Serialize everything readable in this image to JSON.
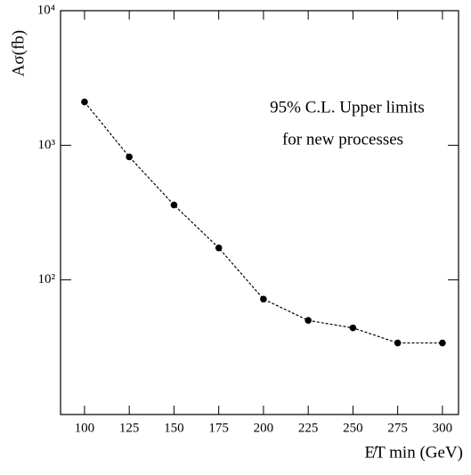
{
  "chart_data": {
    "type": "line",
    "annotation": [
      "95% C.L. Upper limits",
      "for new processes"
    ],
    "x_label": "E̸T min (GeV)",
    "y_label": "Aσ(fb)",
    "x": [
      100,
      125,
      150,
      175,
      200,
      225,
      250,
      275,
      300
    ],
    "series": [
      {
        "color": "#000000",
        "values": [
          2100,
          820,
          360,
          173,
          72,
          50,
          44,
          34,
          34
        ]
      }
    ],
    "xlim": [
      86.6,
      309
    ],
    "xticks": [
      100,
      125,
      150,
      175,
      200,
      225,
      250,
      275,
      300
    ],
    "ylim": [
      10,
      10000
    ],
    "yticks": [
      {
        "value": 100,
        "label": "10²"
      },
      {
        "value": 1000,
        "label": "10³"
      },
      {
        "value": 10000,
        "label": "10⁴"
      }
    ],
    "log_y": true
  }
}
